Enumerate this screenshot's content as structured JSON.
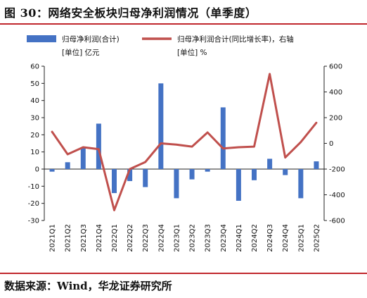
{
  "figure": {
    "title": "图 30：网络安全板块归母净利润情况（单季度）",
    "source": "数据来源：Wind，华龙证券研究所"
  },
  "colors": {
    "bar": "#4472c4",
    "line": "#c0504d",
    "accent_rule": "#c0272d"
  },
  "chart_data": {
    "type": "bar",
    "categories": [
      "2021Q1",
      "2021Q2",
      "2021Q3",
      "2021Q4",
      "2022Q1",
      "2022Q2",
      "2022Q3",
      "2022Q4",
      "2023Q1",
      "2023Q2",
      "2023Q3",
      "2023Q4",
      "2024Q1",
      "2024Q2",
      "2024Q3",
      "2024Q4",
      "2025Q1",
      "2025Q2"
    ],
    "series": [
      {
        "name": "归母净利润(合计)",
        "unit_label": "[单位] 亿元",
        "type": "bar",
        "axis": "left",
        "values": [
          -1.5,
          4,
          12.5,
          26.5,
          -14,
          -7,
          -10.5,
          50,
          -17,
          -6,
          -1.5,
          36,
          -18.5,
          -6.5,
          6,
          -3.5,
          -17,
          4.5
        ]
      },
      {
        "name": "归母净利润合计(同比增长率)，右轴",
        "unit_label": "[单位] %",
        "type": "line",
        "axis": "right",
        "values": [
          90,
          -85,
          -30,
          -45,
          -520,
          -200,
          -145,
          0,
          -10,
          -25,
          85,
          -40,
          -30,
          -25,
          540,
          -110,
          10,
          160
        ]
      }
    ],
    "y_left": {
      "min": -30,
      "max": 60,
      "ticks": [
        -30,
        -20,
        -10,
        0,
        10,
        20,
        30,
        40,
        50,
        60
      ]
    },
    "y_right": {
      "min": -600,
      "max": 600,
      "ticks": [
        -600,
        -400,
        -200,
        0,
        200,
        400,
        600
      ]
    },
    "grid": false,
    "legend_position": "top"
  }
}
